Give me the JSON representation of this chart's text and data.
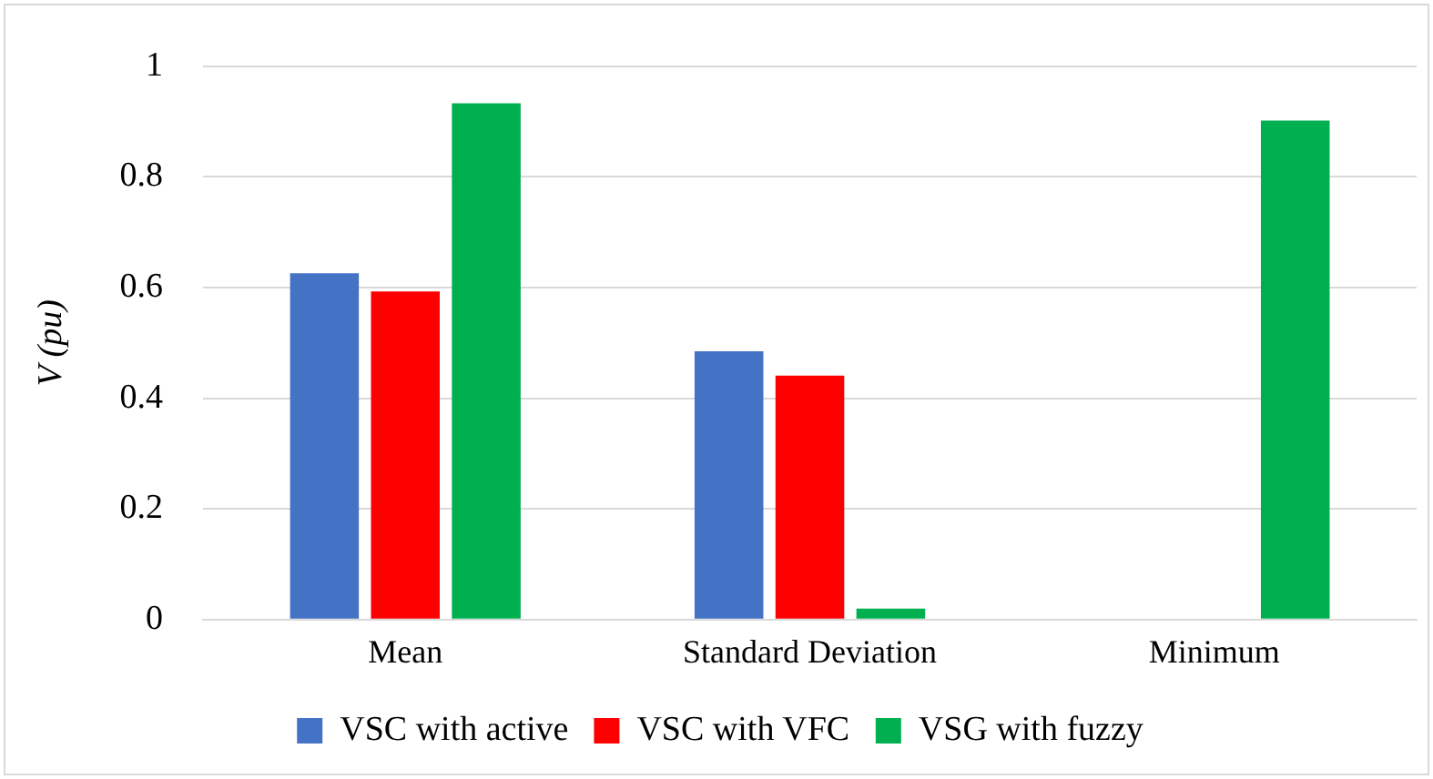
{
  "chart_data": {
    "type": "bar",
    "ylabel": "V (pu)",
    "categories": [
      "Mean",
      "Standard Deviation",
      "Minimum"
    ],
    "series": [
      {
        "name": "VSC with active",
        "color": "#4472c4",
        "values": [
          0.626,
          0.485,
          0
        ]
      },
      {
        "name": "VSC with VFC",
        "color": "#ff0000",
        "values": [
          0.593,
          0.441,
          0
        ]
      },
      {
        "name": "VSG with fuzzy",
        "color": "#00b050",
        "values": [
          0.933,
          0.02,
          0.902
        ]
      }
    ],
    "ylim": [
      0,
      1
    ],
    "yticks": [
      0,
      0.2,
      0.4,
      0.6,
      0.8,
      1
    ],
    "grid": "y",
    "legend": "bottom"
  }
}
